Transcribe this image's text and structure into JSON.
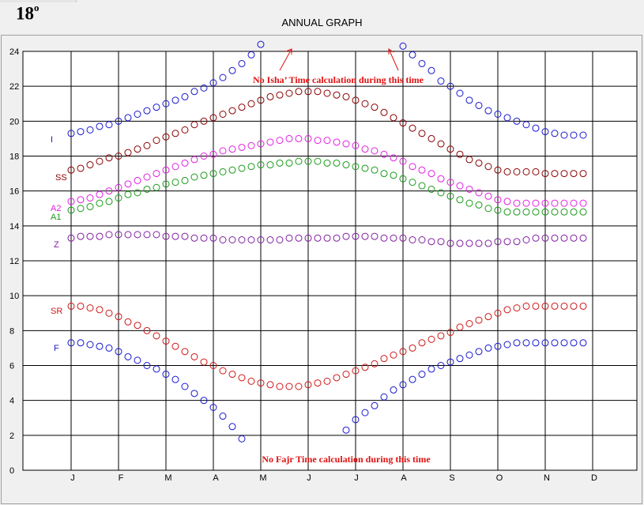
{
  "header": {
    "latitude": "18",
    "degree_mark": "o",
    "title": "ANNUAL GRAPH"
  },
  "chart_data": {
    "type": "scatter",
    "title": "ANNUAL GRAPH",
    "ylim": [
      0,
      24
    ],
    "yticks": [
      0,
      2,
      4,
      6,
      8,
      10,
      12,
      14,
      16,
      18,
      20,
      22,
      24
    ],
    "month_labels": [
      "J",
      "F",
      "M",
      "A",
      "M",
      "J",
      "J",
      "A",
      "S",
      "O",
      "N",
      "D"
    ],
    "grid": true,
    "points_per_month": 5,
    "series": [
      {
        "name": "I",
        "color": "#1818d0",
        "values": [
          19.3,
          19.4,
          19.5,
          19.7,
          19.8,
          20.0,
          20.2,
          20.4,
          20.6,
          20.8,
          21.0,
          21.2,
          21.4,
          21.7,
          21.9,
          22.2,
          22.5,
          22.9,
          23.3,
          23.8,
          24.4,
          null,
          null,
          null,
          null,
          null,
          null,
          null,
          null,
          null,
          null,
          null,
          null,
          null,
          null,
          24.3,
          23.8,
          23.3,
          22.9,
          22.3,
          22.0,
          21.6,
          21.2,
          20.9,
          20.6,
          20.4,
          20.2,
          20.0,
          19.8,
          19.6,
          19.4,
          19.3,
          19.2,
          19.2,
          19.2
        ]
      },
      {
        "name": "SS",
        "color": "#8b0000",
        "values": [
          17.2,
          17.3,
          17.5,
          17.7,
          17.9,
          18.0,
          18.2,
          18.4,
          18.6,
          18.9,
          19.1,
          19.3,
          19.5,
          19.8,
          20.0,
          20.2,
          20.4,
          20.6,
          20.8,
          21.0,
          21.2,
          21.4,
          21.5,
          21.6,
          21.7,
          21.7,
          21.7,
          21.6,
          21.5,
          21.4,
          21.2,
          21.0,
          20.8,
          20.5,
          20.2,
          19.9,
          19.6,
          19.3,
          19.0,
          18.7,
          18.4,
          18.1,
          17.8,
          17.6,
          17.4,
          17.2,
          17.1,
          17.1,
          17.1,
          17.1,
          17.0,
          17.0,
          17.0,
          17.0,
          17.0
        ]
      },
      {
        "name": "A2",
        "color": "#e020e0",
        "values": [
          15.4,
          15.5,
          15.6,
          15.8,
          16.0,
          16.2,
          16.4,
          16.6,
          16.8,
          17.0,
          17.2,
          17.4,
          17.6,
          17.8,
          18.0,
          18.1,
          18.3,
          18.4,
          18.5,
          18.6,
          18.7,
          18.8,
          18.9,
          19.0,
          19.0,
          19.0,
          18.9,
          18.9,
          18.8,
          18.7,
          18.6,
          18.4,
          18.3,
          18.1,
          17.9,
          17.7,
          17.4,
          17.2,
          17.0,
          16.7,
          16.5,
          16.3,
          16.1,
          15.9,
          15.7,
          15.5,
          15.4,
          15.3,
          15.3,
          15.3,
          15.3,
          15.3,
          15.3,
          15.3,
          15.3
        ]
      },
      {
        "name": "A1",
        "color": "#1a9a1a",
        "values": [
          14.9,
          15.0,
          15.1,
          15.3,
          15.4,
          15.6,
          15.8,
          15.9,
          16.1,
          16.2,
          16.4,
          16.5,
          16.6,
          16.8,
          16.9,
          17.0,
          17.1,
          17.2,
          17.3,
          17.4,
          17.5,
          17.5,
          17.6,
          17.6,
          17.7,
          17.7,
          17.7,
          17.6,
          17.6,
          17.5,
          17.4,
          17.3,
          17.2,
          17.0,
          16.9,
          16.7,
          16.5,
          16.3,
          16.1,
          15.9,
          15.7,
          15.5,
          15.3,
          15.2,
          15.0,
          14.9,
          14.8,
          14.8,
          14.8,
          14.8,
          14.8,
          14.8,
          14.8,
          14.8,
          14.8
        ]
      },
      {
        "name": "Z",
        "color": "#8020a0",
        "values": [
          13.3,
          13.4,
          13.4,
          13.4,
          13.5,
          13.5,
          13.5,
          13.5,
          13.5,
          13.5,
          13.4,
          13.4,
          13.4,
          13.3,
          13.3,
          13.3,
          13.2,
          13.2,
          13.2,
          13.2,
          13.2,
          13.2,
          13.2,
          13.3,
          13.3,
          13.3,
          13.3,
          13.3,
          13.3,
          13.4,
          13.4,
          13.4,
          13.4,
          13.3,
          13.3,
          13.3,
          13.2,
          13.2,
          13.1,
          13.1,
          13.0,
          13.0,
          13.0,
          13.0,
          13.0,
          13.1,
          13.1,
          13.1,
          13.2,
          13.3,
          13.3,
          13.3,
          13.3,
          13.3,
          13.3
        ]
      },
      {
        "name": "SR",
        "color": "#d01818",
        "values": [
          9.4,
          9.4,
          9.3,
          9.2,
          9.0,
          8.8,
          8.5,
          8.3,
          8.0,
          7.7,
          7.4,
          7.1,
          6.8,
          6.5,
          6.2,
          6.0,
          5.7,
          5.5,
          5.3,
          5.1,
          5.0,
          4.9,
          4.8,
          4.8,
          4.8,
          4.9,
          5.0,
          5.1,
          5.3,
          5.5,
          5.7,
          5.9,
          6.1,
          6.4,
          6.6,
          6.8,
          7.0,
          7.3,
          7.5,
          7.7,
          7.9,
          8.2,
          8.4,
          8.6,
          8.8,
          9.0,
          9.2,
          9.3,
          9.4,
          9.4,
          9.4,
          9.4,
          9.4,
          9.4,
          9.4
        ]
      },
      {
        "name": "F",
        "color": "#1818d0",
        "values": [
          7.3,
          7.3,
          7.2,
          7.1,
          7.0,
          6.8,
          6.5,
          6.3,
          6.0,
          5.8,
          5.5,
          5.2,
          4.8,
          4.4,
          4.0,
          3.6,
          3.1,
          2.5,
          1.8,
          null,
          null,
          null,
          null,
          null,
          null,
          null,
          null,
          null,
          null,
          2.3,
          2.9,
          3.3,
          3.7,
          4.2,
          4.6,
          4.9,
          5.2,
          5.5,
          5.8,
          6.0,
          6.2,
          6.4,
          6.6,
          6.8,
          7.0,
          7.1,
          7.2,
          7.3,
          7.3,
          7.3,
          7.3,
          7.3,
          7.3,
          7.3,
          7.3
        ]
      }
    ],
    "annotations": [
      {
        "text": "No Isha’ Time calculation during this time",
        "color": "#e01010"
      },
      {
        "text": "No Fajr Time calculation during this time",
        "color": "#e01010"
      }
    ]
  }
}
